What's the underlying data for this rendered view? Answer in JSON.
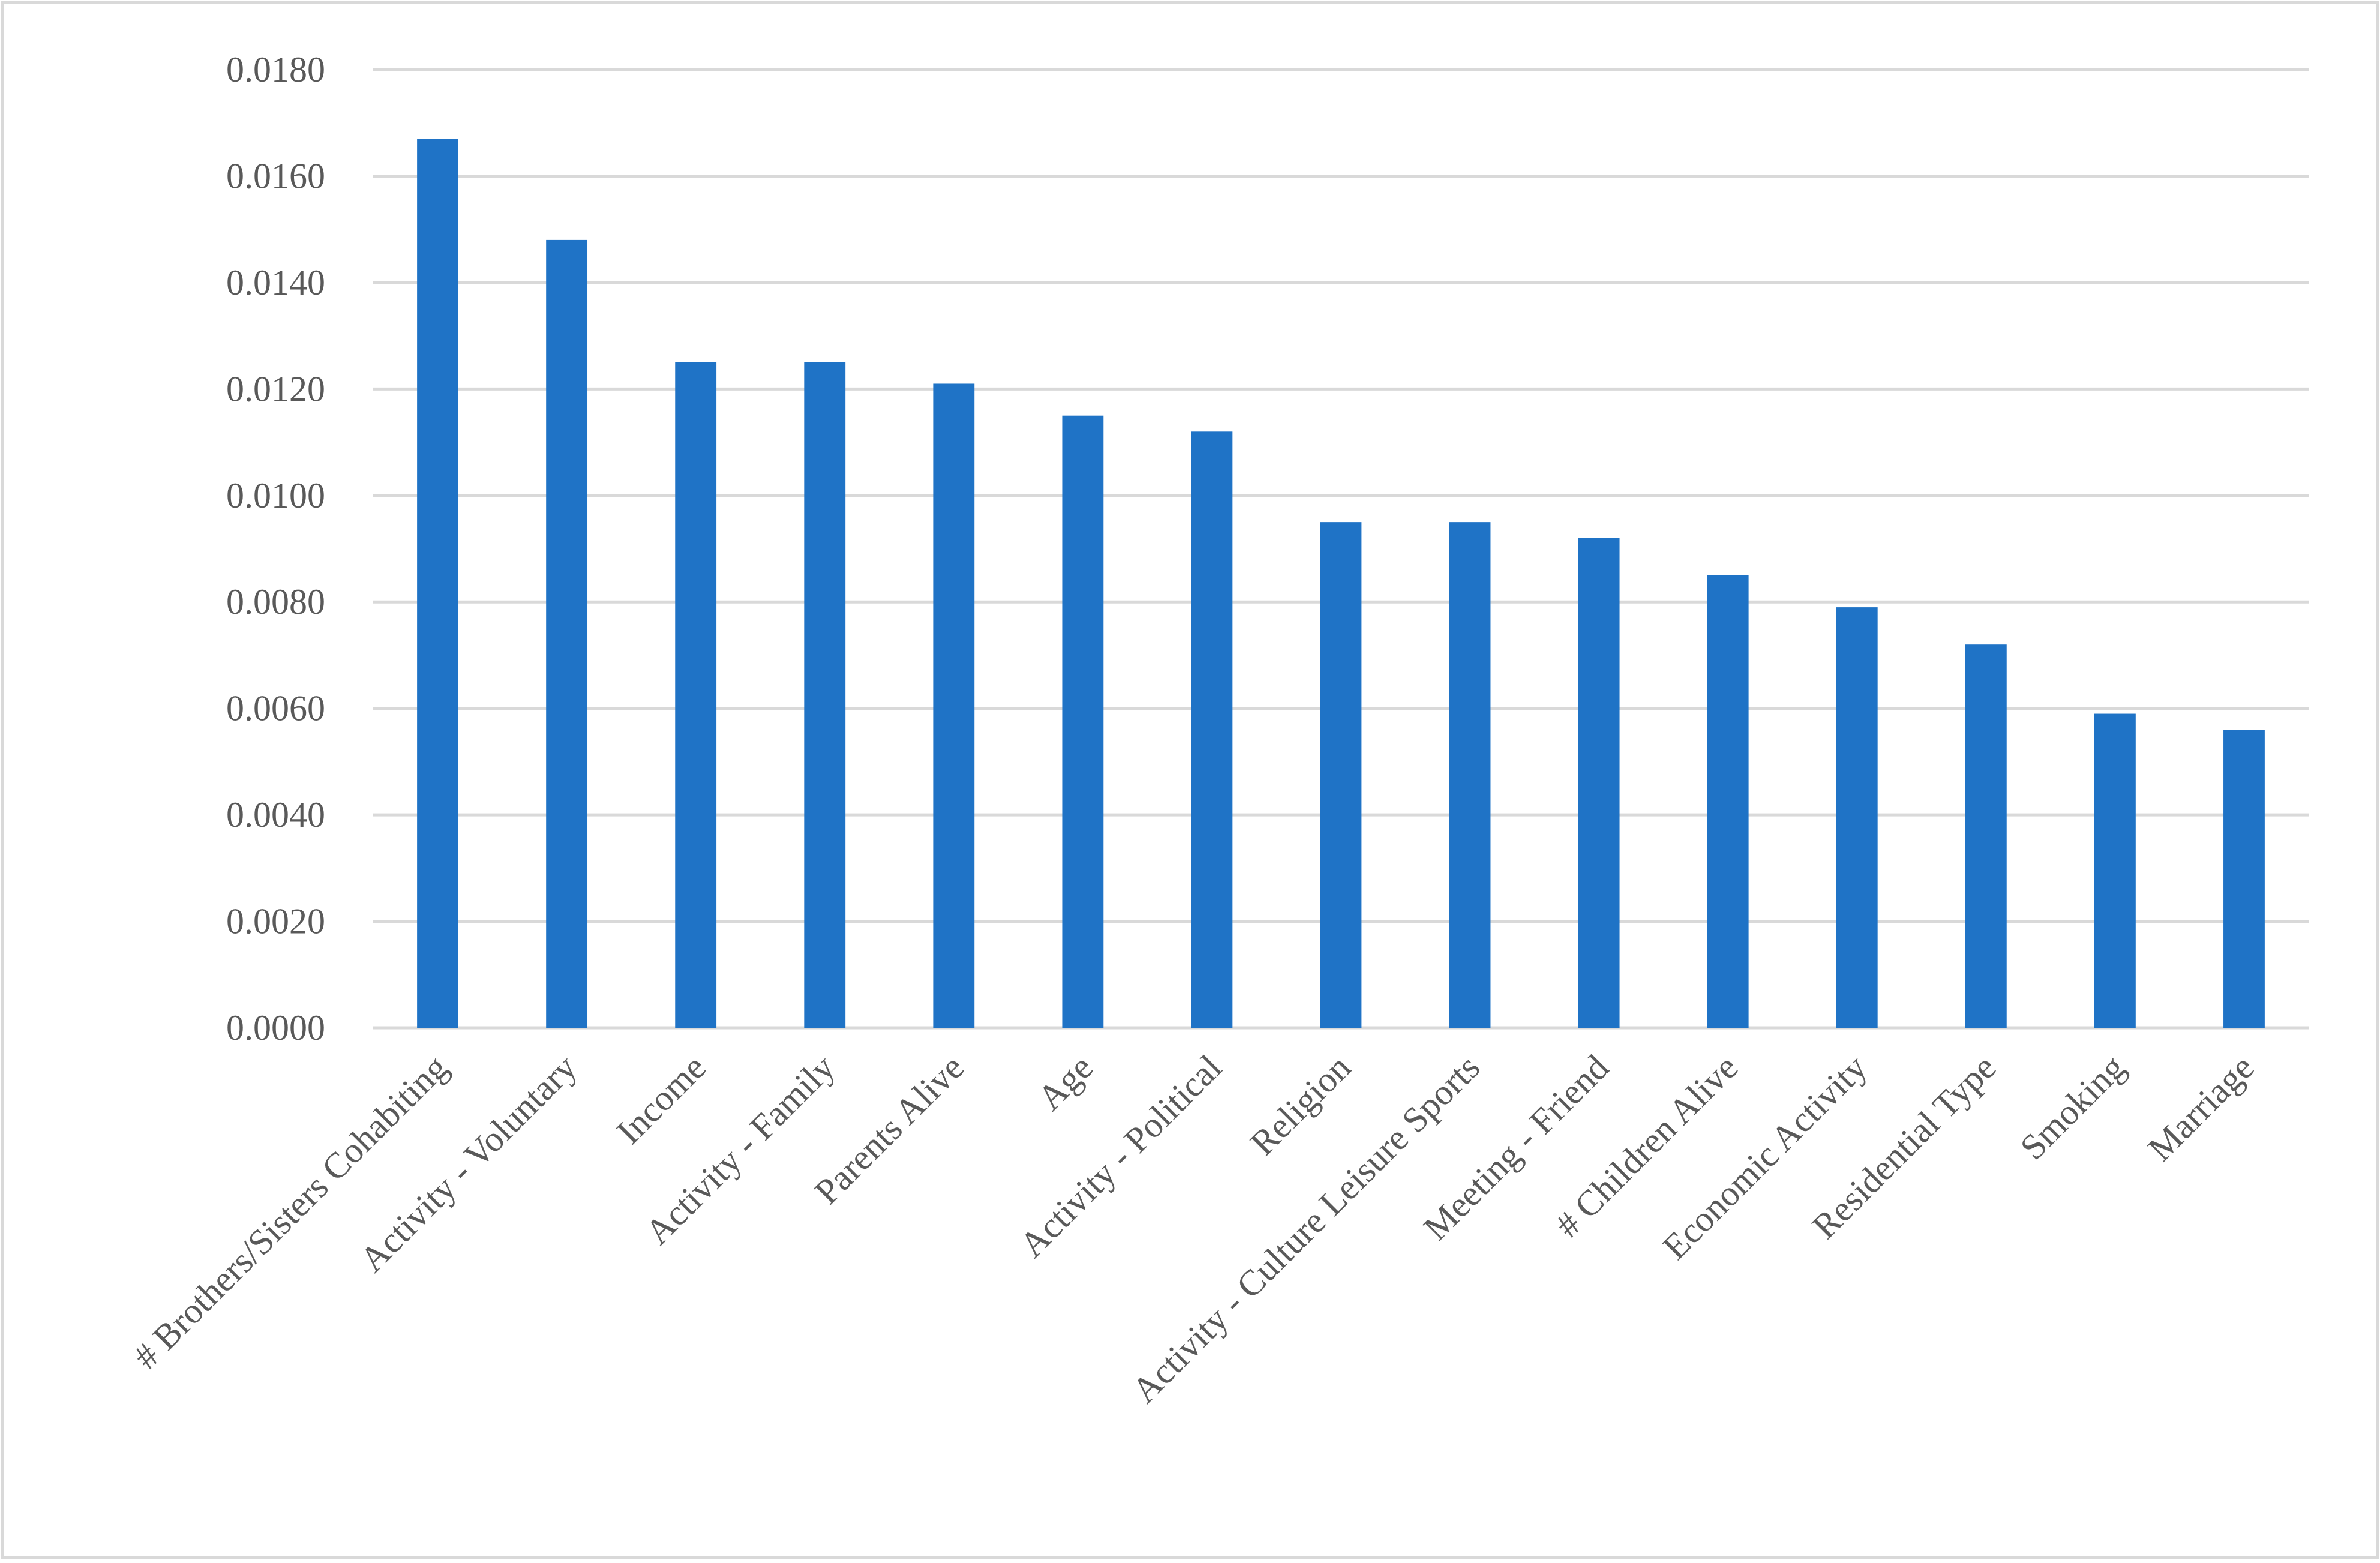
{
  "chart_data": {
    "type": "bar",
    "categories": [
      "# Brothers/Sisters Cohabiting",
      "Activity - Voluntary",
      "Income",
      "Activity - Family",
      "Parents Alive",
      "Age",
      "Activity - Political",
      "Religion",
      "Activity - Culture Leisure Sports",
      "Meeting - Friend",
      "# Children Alive",
      "Economic Activity",
      "Residential Type",
      "Smoking",
      "Marriage"
    ],
    "values": [
      0.0167,
      0.0148,
      0.0125,
      0.0125,
      0.0121,
      0.0115,
      0.0112,
      0.0095,
      0.0095,
      0.0092,
      0.0085,
      0.0079,
      0.0072,
      0.0059,
      0.0056
    ],
    "color": "#1f73c6",
    "ylim": [
      0,
      0.018
    ],
    "yticks": [
      {
        "value": 0,
        "label": "0.0000"
      },
      {
        "value": 0.002,
        "label": "0.0020"
      },
      {
        "value": 0.004,
        "label": "0.0040"
      },
      {
        "value": 0.006,
        "label": "0.0060"
      },
      {
        "value": 0.008,
        "label": "0.0080"
      },
      {
        "value": 0.01,
        "label": "0.0100"
      },
      {
        "value": 0.012,
        "label": "0.0120"
      },
      {
        "value": 0.014,
        "label": "0.0140"
      },
      {
        "value": 0.016,
        "label": "0.0160"
      },
      {
        "value": 0.018,
        "label": "0.0180"
      }
    ],
    "grid": true
  }
}
